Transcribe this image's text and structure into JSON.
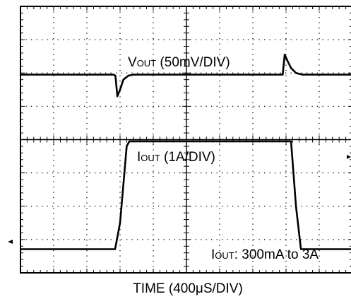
{
  "chart_data": {
    "type": "line",
    "title": "",
    "xlabel": "TIME (400μS/DIV)",
    "grid": true,
    "divisions": {
      "x": 10,
      "y": 8
    },
    "annotations": {
      "vout_main": "V",
      "vout_sub": "OUT",
      "vout_rest": " (50mV/DIV)",
      "iout_main": "I",
      "iout_sub": "OUT",
      "iout_rest": " (1A/DIV)",
      "step_main": "I",
      "step_sub": "OUT",
      "step_rest": ": 300mA to 3A"
    },
    "series": [
      {
        "x": [
          0,
          2.8,
          2.86,
          2.92,
          3.0,
          3.1,
          3.25,
          3.4,
          7.9,
          7.96,
          8.05,
          8.15,
          8.3,
          8.5,
          10
        ],
        "y": [
          5.95,
          5.95,
          5.92,
          5.3,
          5.5,
          5.8,
          5.92,
          5.95,
          5.95,
          6.55,
          6.35,
          6.15,
          6.0,
          5.95,
          5.95
        ]
      },
      {
        "x": [
          0,
          2.85,
          3.0,
          3.2,
          3.28,
          8.15,
          8.3,
          8.45,
          10
        ],
        "y": [
          0.71,
          0.71,
          1.5,
          3.8,
          3.95,
          3.95,
          2.0,
          0.71,
          0.71
        ]
      }
    ]
  }
}
